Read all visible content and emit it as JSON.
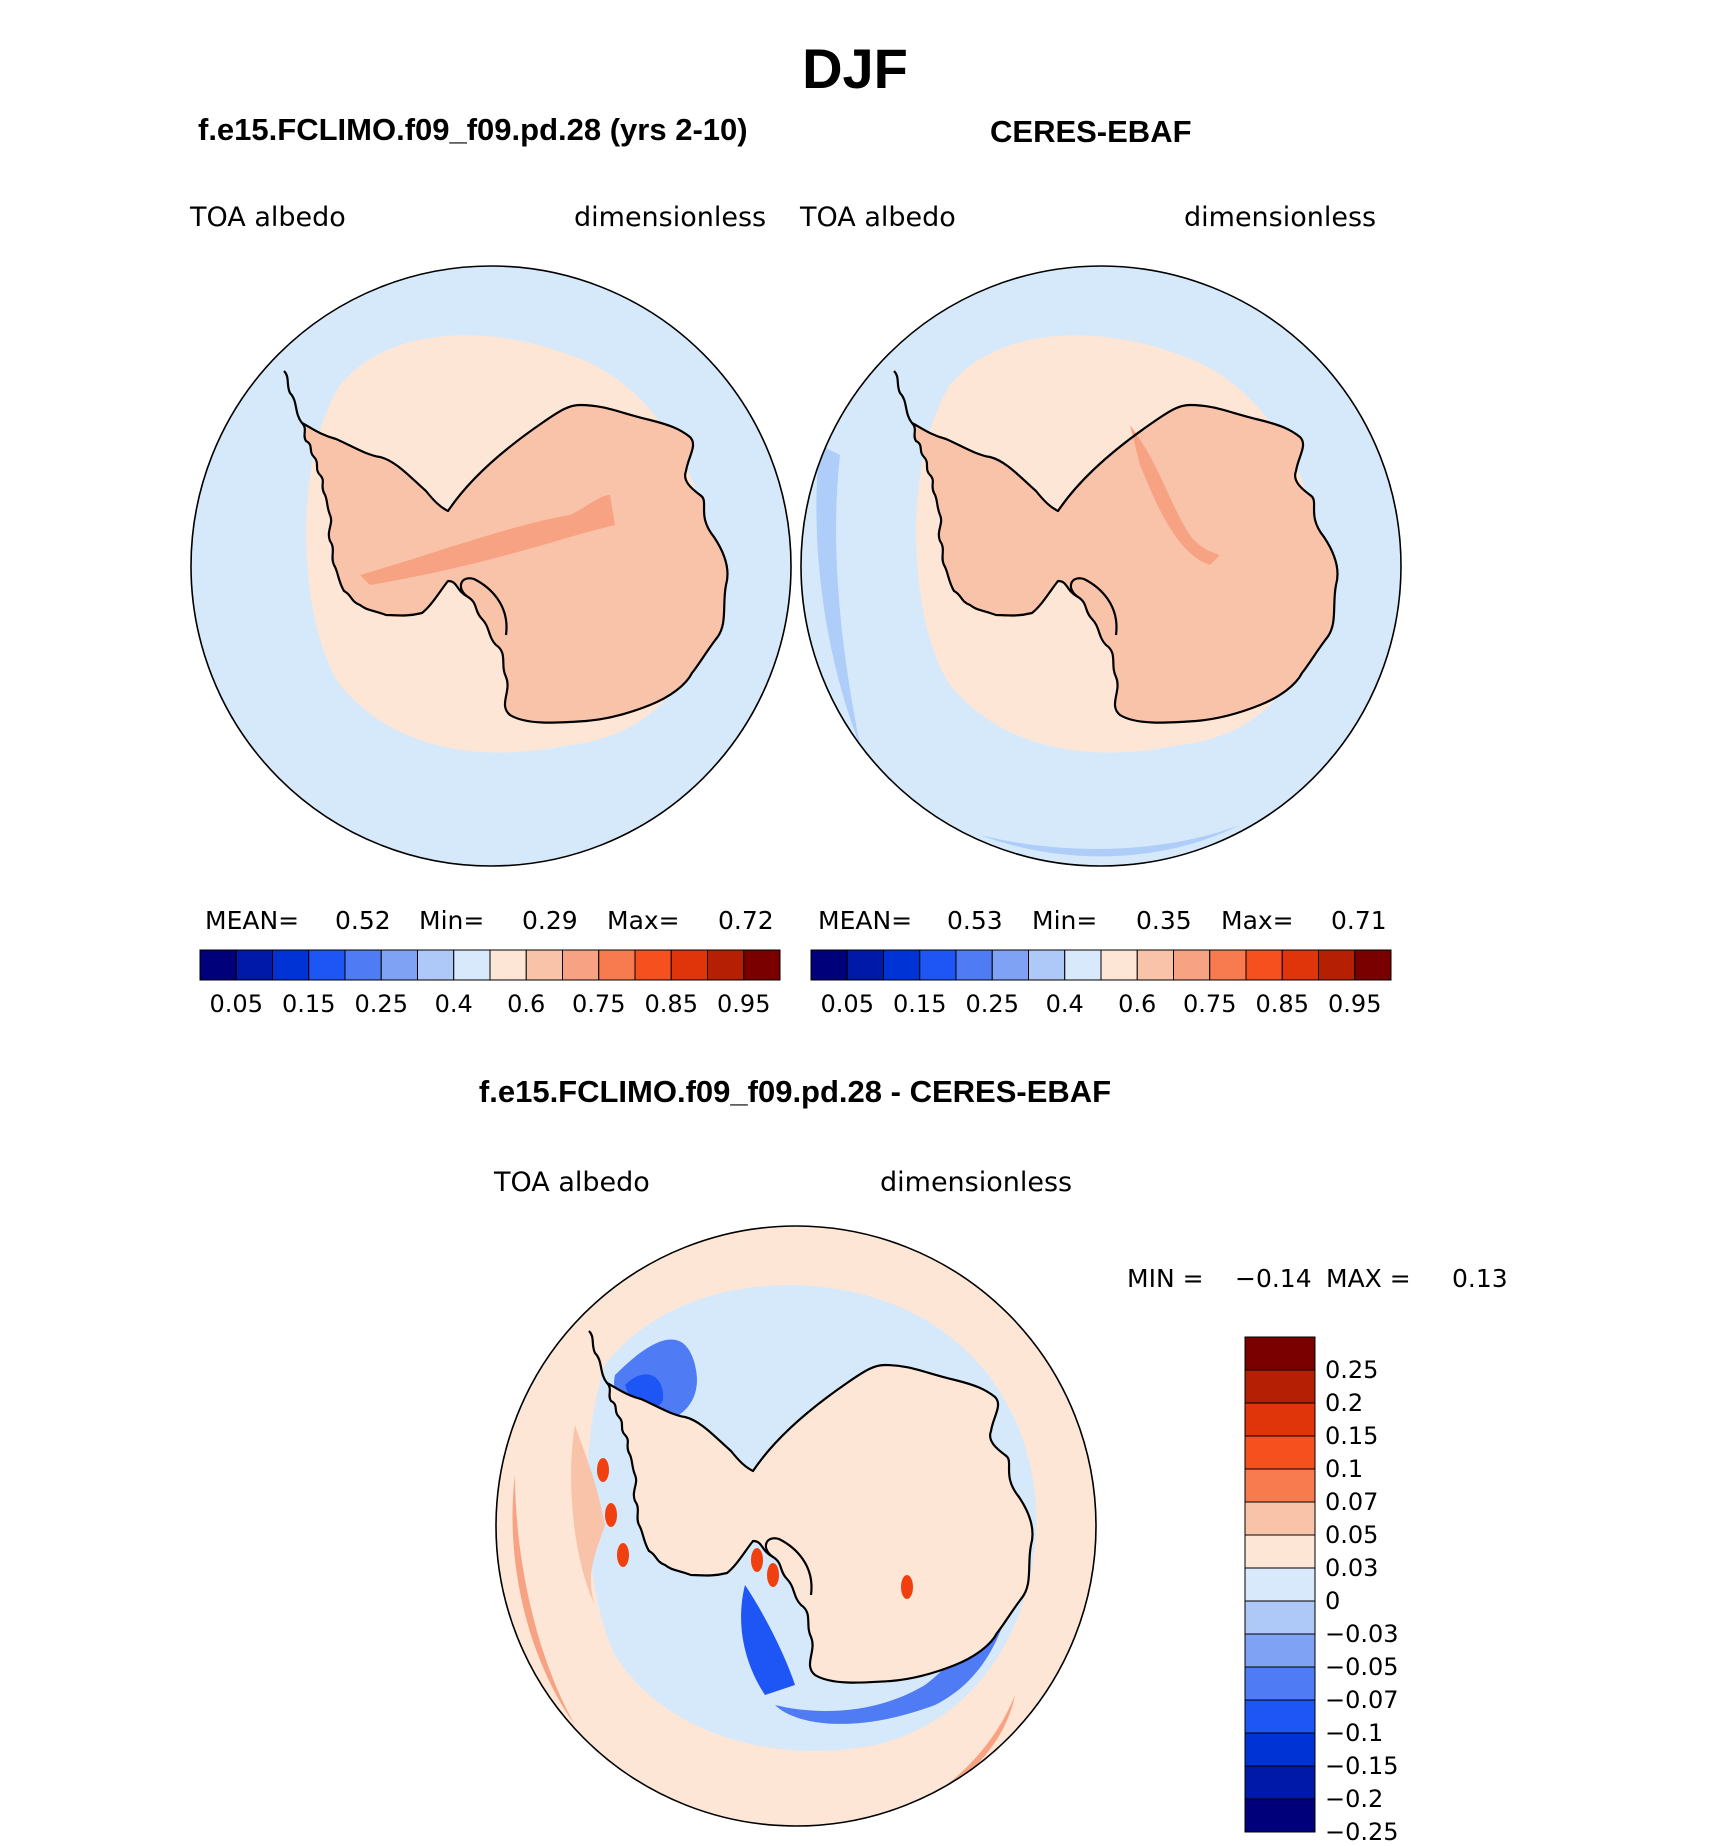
{
  "page": {
    "title": "DJF"
  },
  "panels": [
    {
      "id": "model",
      "case_title": "f.e15.FCLIMO.f09_f09.pd.28 (yrs 2-10)",
      "variable": "TOA albedo",
      "units": "dimensionless",
      "stats": {
        "mean_label": "MEAN=",
        "mean": "0.52",
        "min_label": "Min=",
        "min": "0.29",
        "max_label": "Max=",
        "max": "0.72"
      },
      "colors": {
        "ocean": "#d6e9fb",
        "ice_edge": "#fde6d6",
        "continent": "#f9c3aa",
        "ridge": "#f7a383",
        "low": "#aecdf8"
      }
    },
    {
      "id": "obs",
      "case_title": "CERES-EBAF",
      "variable": "TOA albedo",
      "units": "dimensionless",
      "stats": {
        "mean_label": "MEAN=",
        "mean": "0.53",
        "min_label": "Min=",
        "min": "0.35",
        "max_label": "Max=",
        "max": "0.71"
      },
      "colors": {
        "ocean": "#d6e9fb",
        "ice_edge": "#fde6d6",
        "continent": "#f9c3aa",
        "ridge": "#f7a383",
        "low": "#aecdf8"
      }
    }
  ],
  "colorbar_main": {
    "colors": [
      "#00007a",
      "#0019a8",
      "#0033d6",
      "#1e55f5",
      "#4f7cf5",
      "#7fa2f5",
      "#aec9f8",
      "#d8e9fb",
      "#fde6d6",
      "#f9c3aa",
      "#f7a383",
      "#f77b4f",
      "#f7501f",
      "#e0350a",
      "#b52005",
      "#7a0000"
    ],
    "tick_labels": [
      "0.05",
      "0.15",
      "0.25",
      "0.4",
      "0.6",
      "0.75",
      "0.85",
      "0.95"
    ]
  },
  "diff": {
    "title": "f.e15.FCLIMO.f09_f09.pd.28 - CERES-EBAF",
    "variable": "TOA albedo",
    "units": "dimensionless",
    "min_label": "MIN =",
    "min": "−0.14",
    "max_label": "MAX =",
    "max": "0.13",
    "colors": {
      "background": "#fde6d6",
      "pos_band": "#f9c3aa",
      "pos_strong": "#f7a383",
      "neg_light": "#d6e9fb",
      "neg_mid": "#aecdf8",
      "neg_strong": "#4f7cf5",
      "neg_deep": "#1e55f5",
      "red_spots": "#f04010"
    },
    "colorbar": {
      "colors": [
        "#7a0000",
        "#b52005",
        "#e0350a",
        "#f7501f",
        "#f77b4f",
        "#f9c3aa",
        "#fde6d6",
        "#d8e9fb",
        "#aec9f8",
        "#7fa2f5",
        "#4f7cf5",
        "#1e55f5",
        "#0033d6",
        "#0019a8",
        "#00007a"
      ],
      "tick_labels": [
        "0.25",
        "0.2",
        "0.15",
        "0.1",
        "0.07",
        "0.05",
        "0.03",
        "0",
        "−0.03",
        "−0.05",
        "−0.07",
        "−0.1",
        "−0.15",
        "−0.2",
        "−0.25"
      ]
    }
  }
}
